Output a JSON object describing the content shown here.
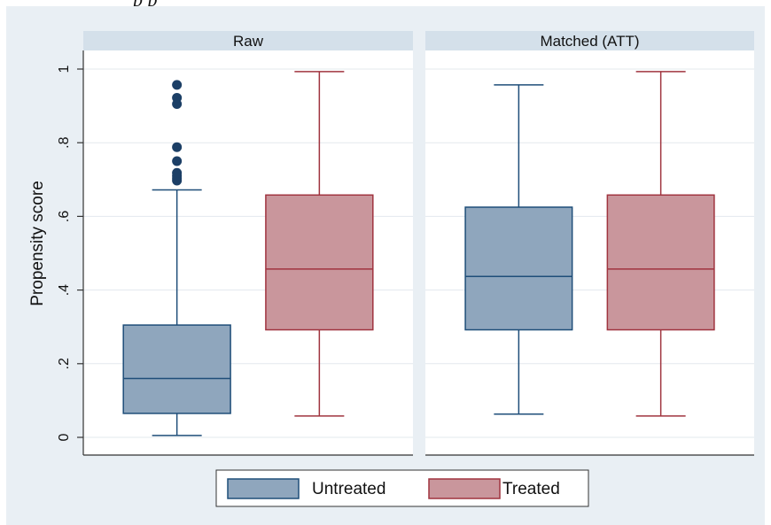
{
  "caption_fragment": "p             p",
  "chart_data": {
    "type": "boxplot",
    "ylabel": "Propensity score",
    "yticks": [
      {
        "value": 0,
        "label": "0"
      },
      {
        "value": 0.2,
        "label": ".2"
      },
      {
        "value": 0.4,
        "label": ".4"
      },
      {
        "value": 0.6,
        "label": ".6"
      },
      {
        "value": 0.8,
        "label": ".8"
      },
      {
        "value": 1.0,
        "label": "1"
      }
    ],
    "ylim": [
      -0.05,
      1.05
    ],
    "grid": true,
    "legend_position": "bottom",
    "panels": [
      {
        "title": "Raw",
        "boxes": [
          {
            "series": "Untreated",
            "whisker_low": 0.005,
            "q1": 0.065,
            "median": 0.16,
            "q3": 0.305,
            "whisker_high": 0.672,
            "outliers": [
              0.697,
              0.703,
              0.71,
              0.718,
              0.75,
              0.788,
              0.905,
              0.922,
              0.957
            ]
          },
          {
            "series": "Treated",
            "whisker_low": 0.058,
            "q1": 0.292,
            "median": 0.457,
            "q3": 0.658,
            "whisker_high": 0.993,
            "outliers": []
          }
        ]
      },
      {
        "title": "Matched (ATT)",
        "boxes": [
          {
            "series": "Untreated",
            "whisker_low": 0.063,
            "q1": 0.292,
            "median": 0.437,
            "q3": 0.625,
            "whisker_high": 0.957,
            "outliers": []
          },
          {
            "series": "Treated",
            "whisker_low": 0.058,
            "q1": 0.292,
            "median": 0.457,
            "q3": 0.658,
            "whisker_high": 0.993,
            "outliers": []
          }
        ]
      }
    ],
    "legend": [
      {
        "name": "Untreated",
        "fill": "#8fa6bd",
        "stroke": "#1f4e79"
      },
      {
        "name": "Treated",
        "fill": "#c9969c",
        "stroke": "#a0343f"
      }
    ],
    "colors": {
      "outer_background": "#e9eff4",
      "plot_background": "#ffffff",
      "panel_header": "#d4e0ea",
      "gridline": "#e3e8ee",
      "axis": "#333333",
      "outlier": "#1c3f66"
    }
  }
}
